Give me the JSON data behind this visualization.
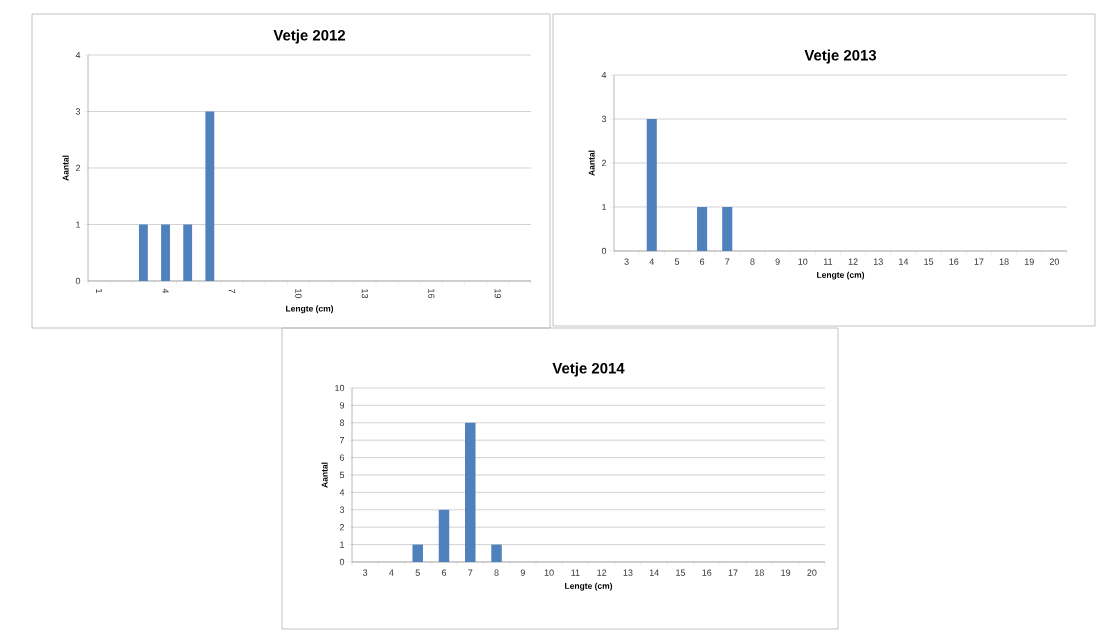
{
  "chart_data": [
    {
      "type": "bar",
      "title": "Vetje 2012",
      "xlabel": "Lengte (cm)",
      "ylabel": "Aantal",
      "categories": [
        "1",
        null,
        null,
        "4",
        null,
        null,
        "7",
        null,
        null,
        "10",
        null,
        null,
        "13",
        null,
        null,
        "16",
        null,
        null,
        "19",
        null
      ],
      "values": [
        0,
        0,
        1,
        1,
        1,
        3,
        0,
        0,
        0,
        0,
        0,
        0,
        0,
        0,
        0,
        0,
        0,
        0,
        0,
        0
      ],
      "color": "#4f81bd",
      "ylim": [
        0,
        4
      ],
      "yticks": [
        0,
        1,
        2,
        3,
        4
      ],
      "grid": "y"
    },
    {
      "type": "bar",
      "title": "Vetje 2013",
      "xlabel": "Lengte (cm)",
      "ylabel": "Aantal",
      "categories": [
        "3",
        "4",
        "5",
        "6",
        "7",
        "8",
        "9",
        "10",
        "11",
        "12",
        "13",
        "14",
        "15",
        "16",
        "17",
        "18",
        "19",
        "20"
      ],
      "values": [
        0,
        3,
        0,
        1,
        1,
        0,
        0,
        0,
        0,
        0,
        0,
        0,
        0,
        0,
        0,
        0,
        0,
        0
      ],
      "color": "#4f81bd",
      "ylim": [
        0,
        4
      ],
      "yticks": [
        0,
        1,
        2,
        3,
        4
      ],
      "grid": "y"
    },
    {
      "type": "bar",
      "title": "Vetje 2014",
      "xlabel": "Lengte (cm)",
      "ylabel": "Aantal",
      "categories": [
        "3",
        "4",
        "5",
        "6",
        "7",
        "8",
        "9",
        "10",
        "11",
        "12",
        "13",
        "14",
        "15",
        "16",
        "17",
        "18",
        "19",
        "20"
      ],
      "values": [
        0,
        0,
        1,
        3,
        8,
        1,
        0,
        0,
        0,
        0,
        0,
        0,
        0,
        0,
        0,
        0,
        0,
        0
      ],
      "color": "#4f81bd",
      "ylim": [
        0,
        10
      ],
      "yticks": [
        0,
        1,
        2,
        3,
        4,
        5,
        6,
        7,
        8,
        9,
        10
      ],
      "grid": "y"
    }
  ]
}
